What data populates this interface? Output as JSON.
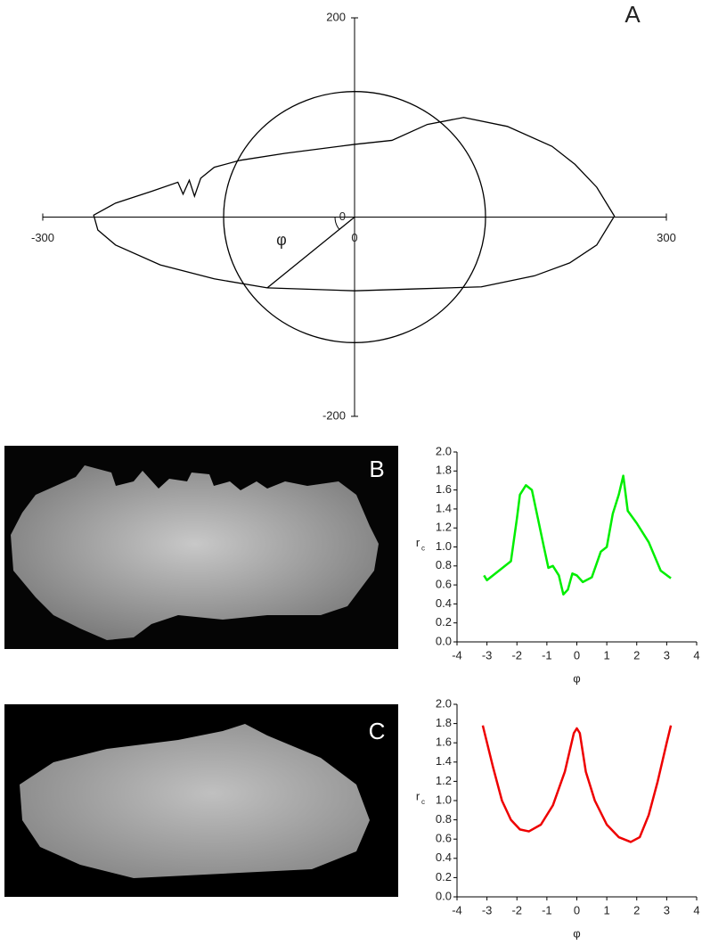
{
  "chart_data": [
    {
      "type": "polar",
      "panel_label": "A",
      "annotation": "φ",
      "xlim": [
        -300,
        300
      ],
      "ylim": [
        -200,
        200
      ],
      "xticks": [
        -300,
        0,
        300
      ],
      "yticks": [
        -200,
        0,
        200
      ],
      "x": [
        -251,
        -230,
        -195,
        -170,
        -165,
        -159,
        -154,
        -148,
        -135,
        -110,
        -67,
        0,
        36,
        70,
        105,
        147,
        190,
        212,
        233,
        250,
        233,
        207,
        173,
        122,
        62,
        0,
        -84,
        -135,
        -187,
        -230,
        -247
      ],
      "y": [
        2,
        14,
        26,
        35,
        23,
        37,
        21,
        39,
        50,
        57,
        64,
        73,
        77,
        93,
        100,
        91,
        71,
        53,
        30,
        1,
        -28,
        -46,
        -59,
        -70,
        -72,
        -74,
        -71,
        -62,
        -48,
        -28,
        -13
      ],
      "circle_radius": 126,
      "color": "#000000"
    },
    {
      "type": "line",
      "panel_label": "B",
      "xlabel": "φ",
      "ylabel": "r",
      "ylabel_subscript": "c",
      "color": "#00ee00",
      "xlim": [
        -4,
        4
      ],
      "ylim": [
        0,
        2
      ],
      "xticks": [
        -4,
        -3,
        -2,
        -1,
        0,
        1,
        2,
        3,
        4
      ],
      "yticks": [
        {
          "value": 0,
          "label": "0.0"
        },
        {
          "value": 0.2,
          "label": "0.2"
        },
        {
          "value": 0.4,
          "label": "0.4"
        },
        {
          "value": 0.6,
          "label": "0.6"
        },
        {
          "value": 0.8,
          "label": "0.8"
        },
        {
          "value": 1,
          "label": "1.0"
        },
        {
          "value": 1.2,
          "label": "1.2"
        },
        {
          "value": 1.4,
          "label": "1.4"
        },
        {
          "value": 1.6,
          "label": "1.6"
        },
        {
          "value": 1.8,
          "label": "1.8"
        },
        {
          "value": 2,
          "label": "2.0"
        }
      ],
      "x": [
        -3.1,
        -3.0,
        -2.6,
        -2.2,
        -2.0,
        -1.9,
        -1.7,
        -1.5,
        -1.3,
        -1.1,
        -0.95,
        -0.8,
        -0.6,
        -0.45,
        -0.3,
        -0.15,
        0,
        0.2,
        0.5,
        0.8,
        1.0,
        1.2,
        1.4,
        1.55,
        1.7,
        2.0,
        2.4,
        2.8,
        3.14
      ],
      "values": [
        0.7,
        0.65,
        0.75,
        0.85,
        1.3,
        1.55,
        1.65,
        1.6,
        1.3,
        1.0,
        0.78,
        0.8,
        0.7,
        0.5,
        0.55,
        0.72,
        0.7,
        0.63,
        0.68,
        0.95,
        1.0,
        1.35,
        1.55,
        1.75,
        1.38,
        1.25,
        1.05,
        0.75,
        0.67
      ]
    },
    {
      "type": "line",
      "panel_label": "C",
      "xlabel": "φ",
      "ylabel": "r",
      "ylabel_subscript": "c",
      "color": "#ee0000",
      "xlim": [
        -4,
        4
      ],
      "ylim": [
        0,
        2
      ],
      "xticks": [
        -4,
        -3,
        -2,
        -1,
        0,
        1,
        2,
        3,
        4
      ],
      "yticks": [
        {
          "value": 0,
          "label": "0.0"
        },
        {
          "value": 0.2,
          "label": "0.2"
        },
        {
          "value": 0.4,
          "label": "0.4"
        },
        {
          "value": 0.6,
          "label": "0.6"
        },
        {
          "value": 0.8,
          "label": "0.8"
        },
        {
          "value": 1,
          "label": "1.0"
        },
        {
          "value": 1.2,
          "label": "1.2"
        },
        {
          "value": 1.4,
          "label": "1.4"
        },
        {
          "value": 1.6,
          "label": "1.6"
        },
        {
          "value": 1.8,
          "label": "1.8"
        },
        {
          "value": 2,
          "label": "2.0"
        }
      ],
      "x": [
        -3.14,
        -2.8,
        -2.5,
        -2.2,
        -1.9,
        -1.6,
        -1.2,
        -0.8,
        -0.4,
        -0.1,
        0,
        0.1,
        0.3,
        0.6,
        1.0,
        1.4,
        1.8,
        2.1,
        2.4,
        2.7,
        3.0,
        3.14
      ],
      "values": [
        1.78,
        1.35,
        1.0,
        0.8,
        0.7,
        0.68,
        0.75,
        0.95,
        1.3,
        1.7,
        1.75,
        1.7,
        1.3,
        1.0,
        0.75,
        0.62,
        0.57,
        0.62,
        0.85,
        1.2,
        1.6,
        1.78
      ]
    }
  ]
}
